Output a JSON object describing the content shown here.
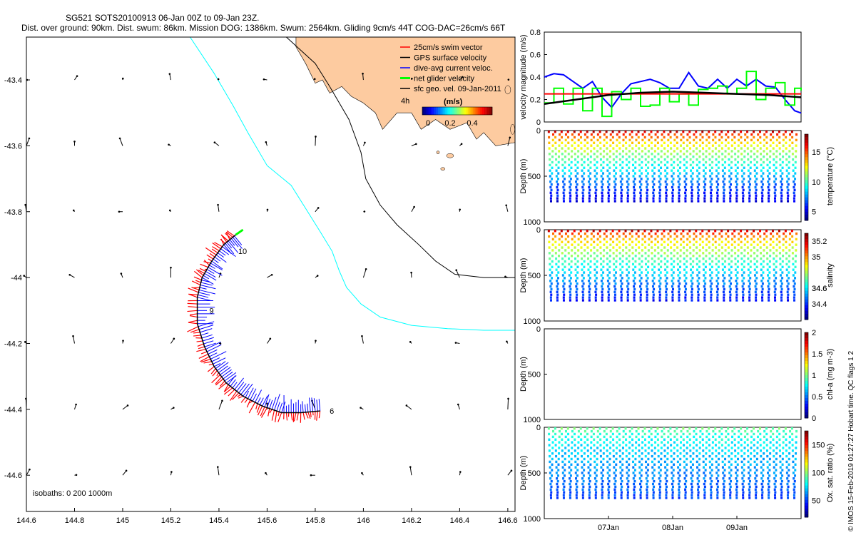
{
  "title": {
    "line1": "SG521 SOTS20100913 06-Jan 00Z to 09-Jan 23Z.",
    "line2": "Dist. over ground: 90km. Dist. swum: 86km. Mission DOG: 1386km. Swum: 2564km. Gliding 9cm/s 44T COG-DAC=26cm/s 66T"
  },
  "footer": "© IMOS 15-Feb-2019 01:27:27 Hobart time. QC flags 1  2",
  "colors": {
    "glider_track": "#000000",
    "swim_vector": "#ff0000",
    "dac": "#0000ff",
    "net": "#00ff00",
    "isobath_200": "#00ffff",
    "isobath_1000": "#000000",
    "land": "#fdcba0",
    "sfc_geo": "#000000"
  },
  "chart_data": [
    {
      "id": "map",
      "type": "scatter",
      "xlabel": "",
      "ylabel": "",
      "xlim": [
        144.6,
        146.63
      ],
      "ylim": [
        -44.71,
        -43.27
      ],
      "xticks": [
        "144.6",
        "144.8",
        "145",
        "145.2",
        "145.4",
        "145.6",
        "145.8",
        "146",
        "146.2",
        "146.4",
        "146.6"
      ],
      "yticks": [
        "-43.4",
        "-43.6",
        "-43.8",
        "-44",
        "-44.2",
        "-44.4",
        "-44.6"
      ],
      "xtick_values": [
        144.6,
        144.8,
        145.0,
        145.2,
        145.4,
        145.6,
        145.8,
        146.0,
        146.2,
        146.4,
        146.6
      ],
      "ytick_values": [
        -43.4,
        -43.6,
        -43.8,
        -44.0,
        -44.2,
        -44.4,
        -44.6
      ],
      "legend": {
        "entries": [
          "25cm/s swim vector",
          "GPS surface velocity",
          "dive-avg current veloc.",
          "net glider velocity",
          "sfc geo. vel. 09-Jan-2011"
        ],
        "extra": "4h",
        "colorbar_label": "(m/s)",
        "colorbar_ticks": [
          "0",
          "0.2",
          "0.4"
        ]
      },
      "isobaths_label": "isobaths: 0   200   1000m",
      "track_labels": [
        {
          "text": "10",
          "lon": 145.48,
          "lat": -43.92
        },
        {
          "text": "9",
          "lon": 145.36,
          "lat": -44.1
        },
        {
          "text": "6",
          "lon": 145.86,
          "lat": -44.405
        }
      ],
      "track": [
        [
          145.82,
          -44.405
        ],
        [
          145.74,
          -44.41
        ],
        [
          145.66,
          -44.41
        ],
        [
          145.58,
          -44.39
        ],
        [
          145.5,
          -44.36
        ],
        [
          145.43,
          -44.32
        ],
        [
          145.38,
          -44.27
        ],
        [
          145.34,
          -44.21
        ],
        [
          145.31,
          -44.14
        ],
        [
          145.31,
          -44.06
        ],
        [
          145.33,
          -44.0
        ],
        [
          145.37,
          -43.95
        ],
        [
          145.42,
          -43.9
        ],
        [
          145.47,
          -43.87
        ]
      ],
      "isobath_200": [
        [
          145.28,
          -43.27
        ],
        [
          145.38,
          -43.38
        ],
        [
          145.46,
          -43.48
        ],
        [
          145.52,
          -43.56
        ],
        [
          145.6,
          -43.66
        ],
        [
          145.7,
          -43.72
        ],
        [
          145.76,
          -43.79
        ],
        [
          145.82,
          -43.86
        ],
        [
          145.87,
          -43.92
        ],
        [
          145.9,
          -43.98
        ],
        [
          145.93,
          -44.03
        ],
        [
          145.99,
          -44.08
        ],
        [
          146.07,
          -44.12
        ],
        [
          146.2,
          -44.145
        ],
        [
          146.35,
          -44.155
        ],
        [
          146.5,
          -44.16
        ],
        [
          146.63,
          -44.16
        ]
      ],
      "isobath_1000": [
        [
          145.68,
          -43.27
        ],
        [
          145.8,
          -43.35
        ],
        [
          145.86,
          -43.42
        ],
        [
          145.94,
          -43.52
        ],
        [
          145.99,
          -43.62
        ],
        [
          146.01,
          -43.7
        ],
        [
          146.07,
          -43.78
        ],
        [
          146.14,
          -43.84
        ],
        [
          146.23,
          -43.9
        ],
        [
          146.3,
          -43.95
        ],
        [
          146.38,
          -43.99
        ],
        [
          146.5,
          -44.0
        ],
        [
          146.63,
          -44.0
        ]
      ],
      "sfc_geo_grid": {
        "lons": [
          144.6,
          144.8,
          145.0,
          145.2,
          145.4,
          145.6,
          145.8,
          146.0,
          146.2,
          146.4,
          146.6
        ],
        "lats": [
          -43.4,
          -43.6,
          -43.8,
          -44.0,
          -44.2,
          -44.4,
          -44.6
        ]
      }
    },
    {
      "id": "velocity",
      "type": "line",
      "ylabel": "velocity magnitude (m/s)",
      "ylim": [
        0,
        0.8
      ],
      "yticks": [
        "0",
        "0.2",
        "0.4",
        "0.6",
        "0.8"
      ],
      "ytick_values": [
        0,
        0.2,
        0.4,
        0.6,
        0.8
      ],
      "xlim": [
        6,
        10
      ],
      "series": [
        {
          "name": "dive-avg current",
          "color": "#0000ff",
          "x": [
            6.0,
            6.15,
            6.3,
            6.45,
            6.6,
            6.75,
            6.9,
            7.05,
            7.2,
            7.35,
            7.5,
            7.65,
            7.8,
            7.95,
            8.1,
            8.25,
            8.4,
            8.55,
            8.7,
            8.85,
            9.0,
            9.15,
            9.3,
            9.45,
            9.6,
            9.75,
            9.9,
            10.0
          ],
          "values": [
            0.4,
            0.43,
            0.42,
            0.36,
            0.3,
            0.36,
            0.22,
            0.13,
            0.25,
            0.34,
            0.36,
            0.38,
            0.35,
            0.3,
            0.3,
            0.44,
            0.32,
            0.3,
            0.38,
            0.3,
            0.38,
            0.32,
            0.38,
            0.32,
            0.31,
            0.2,
            0.1,
            0.08
          ]
        },
        {
          "name": "net glider velocity",
          "color": "#00ff00",
          "x": [
            6.0,
            6.15,
            6.3,
            6.45,
            6.6,
            6.75,
            6.9,
            7.05,
            7.2,
            7.35,
            7.5,
            7.65,
            7.8,
            7.95,
            8.1,
            8.25,
            8.4,
            8.55,
            8.7,
            8.85,
            9.0,
            9.15,
            9.3,
            9.45,
            9.6,
            9.75,
            9.9,
            10.0
          ],
          "values": [
            0.17,
            0.3,
            0.16,
            0.3,
            0.1,
            0.3,
            0.05,
            0.27,
            0.2,
            0.3,
            0.14,
            0.15,
            0.3,
            0.18,
            0.25,
            0.15,
            0.29,
            0.3,
            0.32,
            0.25,
            0.3,
            0.45,
            0.2,
            0.3,
            0.35,
            0.15,
            0.3,
            0.28
          ]
        },
        {
          "name": "swim",
          "color": "#ff0000",
          "x": [
            6.0,
            10.0
          ],
          "values": [
            0.25,
            0.25
          ]
        },
        {
          "name": "smoothed",
          "color": "#000000",
          "x": [
            6.0,
            6.5,
            7.0,
            7.5,
            8.0,
            8.5,
            9.0,
            9.5,
            10.0
          ],
          "values": [
            0.16,
            0.2,
            0.24,
            0.26,
            0.27,
            0.26,
            0.25,
            0.24,
            0.22
          ]
        }
      ]
    },
    {
      "id": "temperature",
      "type": "scatter",
      "ylabel": "Depth (m)",
      "ylim": [
        1000,
        0
      ],
      "yticks": [
        "0",
        "500",
        "1000"
      ],
      "colorbar_label": "temperature (°C)",
      "colorbar_ticks": [
        "5",
        "10",
        "15"
      ],
      "colorbar_range": [
        3.5,
        18
      ],
      "profiles": 39,
      "surface_value": 17,
      "deep_value": 5,
      "max_depth": 760
    },
    {
      "id": "salinity",
      "type": "scatter",
      "ylabel": "Depth (m)",
      "ylim": [
        1000,
        0
      ],
      "yticks": [
        "0",
        "500",
        "1000"
      ],
      "colorbar_label": "salinity",
      "colorbar_ticks": [
        "34.4",
        "34.6",
        "34.6",
        "35",
        "35.2"
      ],
      "colorbar_range": [
        34.2,
        35.3
      ],
      "profiles": 39,
      "surface_value": 35.2,
      "deep_value": 34.35,
      "max_depth": 760
    },
    {
      "id": "chla",
      "type": "scatter",
      "ylabel": "Depth (m)",
      "ylim": [
        1000,
        0
      ],
      "yticks": [
        "0",
        "500",
        "1000"
      ],
      "colorbar_label": "chl-a (mg m-3)",
      "colorbar_ticks": [
        "0",
        "0.5",
        "1",
        "1.5",
        "2"
      ],
      "colorbar_range": [
        0,
        2
      ],
      "profiles": 0
    },
    {
      "id": "oxygen",
      "type": "scatter",
      "ylabel": "Depth (m)",
      "ylim": [
        1000,
        0
      ],
      "yticks": [
        "0",
        "500",
        "1000"
      ],
      "colorbar_label": "Ox. sat. ratio (%)",
      "colorbar_ticks": [
        "50",
        "100",
        "150"
      ],
      "colorbar_range": [
        20,
        175
      ],
      "profiles": 39,
      "surface_value": 95,
      "deep_value": 50,
      "max_depth": 760,
      "xticks": [
        "07Jan",
        "08Jan",
        "09Jan"
      ],
      "xtick_values": [
        7,
        8,
        9
      ],
      "xlim": [
        6,
        10
      ]
    }
  ]
}
